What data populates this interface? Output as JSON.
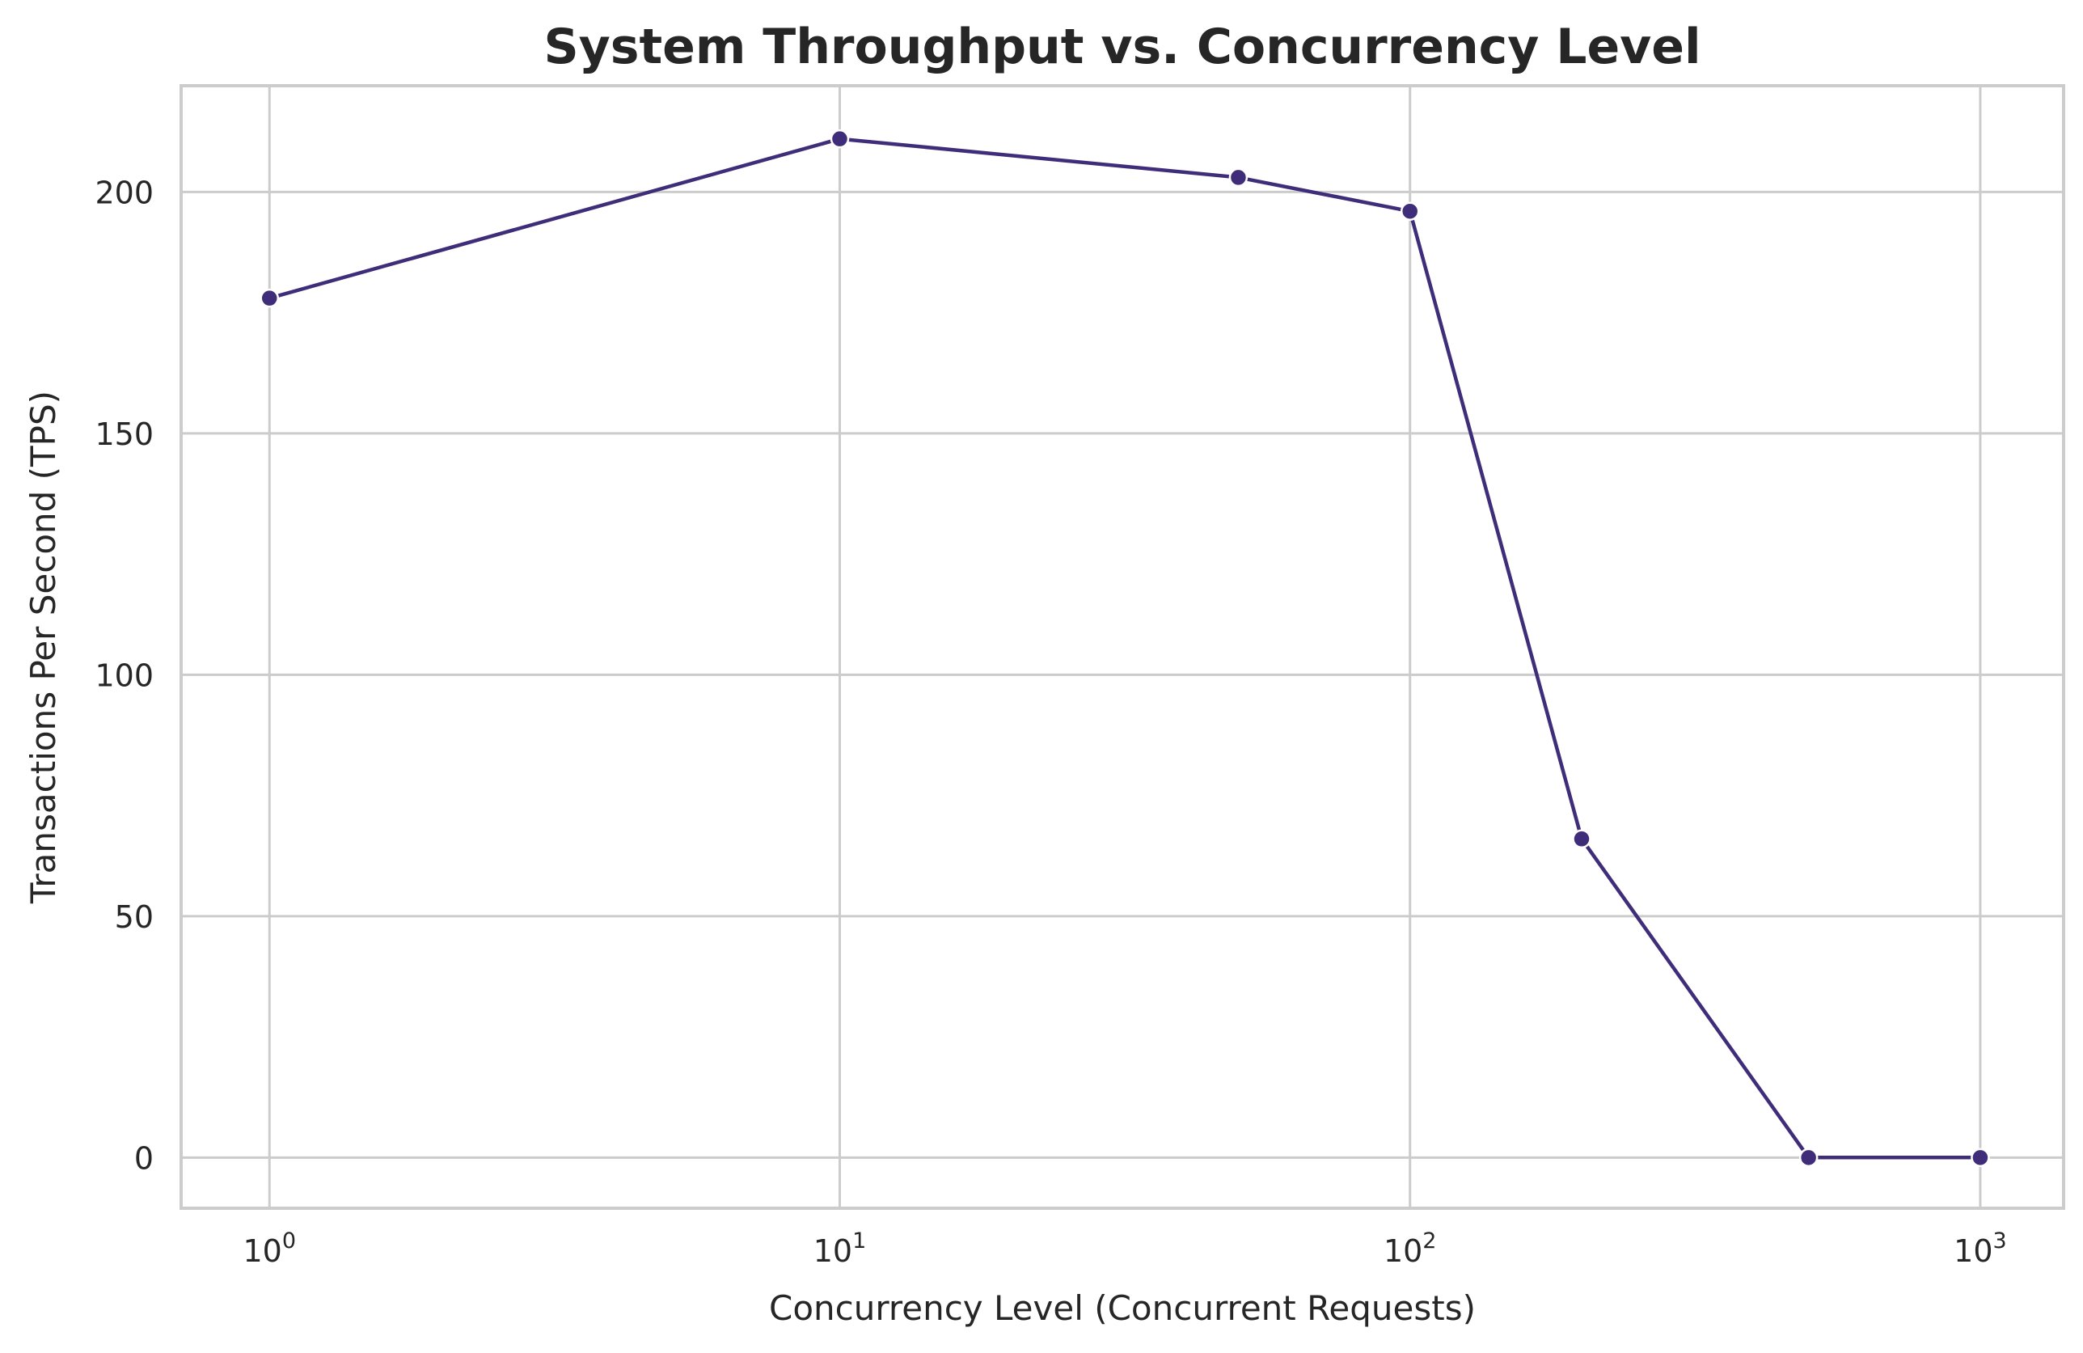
{
  "chart_data": {
    "type": "line",
    "title": "System Throughput vs. Concurrency Level",
    "xlabel": "Concurrency Level (Concurrent Requests)",
    "ylabel": "Transactions Per Second (TPS)",
    "x_scale": "log",
    "xlim": [
      0.7,
      1400
    ],
    "ylim": [
      -10.5,
      222
    ],
    "x_ticks": [
      {
        "base": "10",
        "exp": "0",
        "value": 1
      },
      {
        "base": "10",
        "exp": "1",
        "value": 10
      },
      {
        "base": "10",
        "exp": "2",
        "value": 100
      },
      {
        "base": "10",
        "exp": "3",
        "value": 1000
      }
    ],
    "y_ticks": [
      0,
      50,
      100,
      150,
      200
    ],
    "grid": true,
    "legend": "none",
    "colors": {
      "series": "#3f2d7a",
      "grid": "#cccccc",
      "text": "#262626"
    },
    "series": [
      {
        "x": [
          1,
          10,
          50,
          100,
          200,
          500,
          1000
        ],
        "y": [
          178,
          211,
          203,
          196,
          66,
          0,
          0
        ]
      }
    ]
  }
}
